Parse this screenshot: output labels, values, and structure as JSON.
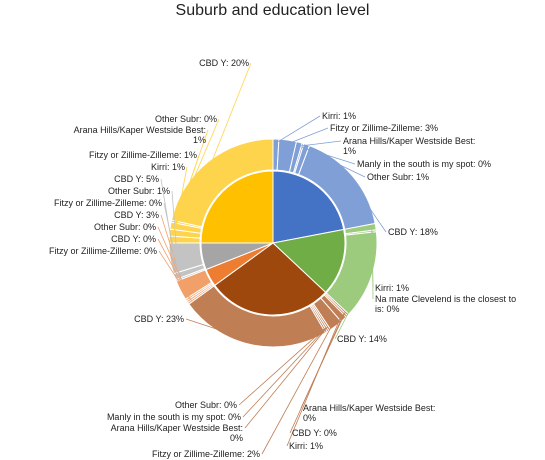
{
  "chart_data": {
    "type": "pie",
    "title": "Suburb and education level",
    "colors": {
      "inner": [
        "#4472C4",
        "#70AD47",
        "#9E480E",
        "#ED7D31",
        "#A5A5A5",
        "#FFC000"
      ],
      "outer": [
        "#7F9FD6",
        "#9CCB7D",
        "#C07E54",
        "#F1A06A",
        "#C3C3C3",
        "#FFD44D"
      ]
    },
    "inner": {
      "values": [
        22,
        15,
        28,
        4,
        6,
        25
      ]
    },
    "outer": [
      {
        "group": 0,
        "value": 1,
        "label": "Kirri: 1%"
      },
      {
        "group": 0,
        "value": 3,
        "label": "Fitzy or Zillime-Zilleme: 3%"
      },
      {
        "group": 0,
        "value": 1,
        "label": [
          "Arana Hills/Kaper Westside Best:",
          "1%"
        ]
      },
      {
        "group": 0,
        "value": 0.3,
        "label": "Manly in the south is my spot: 0%"
      },
      {
        "group": 0,
        "value": 1,
        "label": "Other Subr: 1%"
      },
      {
        "group": 0,
        "value": 18,
        "label": "CBD Y: 18%"
      },
      {
        "group": 1,
        "value": 1,
        "label": "Kirri: 1%"
      },
      {
        "group": 1,
        "value": 0.3,
        "label": [
          "Na mate Clevelend is the closest to",
          "is: 0%"
        ]
      },
      {
        "group": 1,
        "value": 14,
        "label": "CBD Y: 14%"
      },
      {
        "group": 2,
        "value": 0.3,
        "label": [
          "Arana Hills/Kaper Westside Best:",
          "0%"
        ]
      },
      {
        "group": 2,
        "value": 0.3,
        "label": "CBD Y: 0%"
      },
      {
        "group": 2,
        "value": 1,
        "label": "Kirri: 1%"
      },
      {
        "group": 2,
        "value": 2,
        "label": "Fitzy or Zillime-Zilleme: 2%"
      },
      {
        "group": 2,
        "value": 0.3,
        "label": [
          "Arana Hills/Kaper Westside Best:",
          "0%"
        ]
      },
      {
        "group": 2,
        "value": 0.3,
        "label": "Manly in the south is my spot: 0%"
      },
      {
        "group": 2,
        "value": 0.3,
        "label": "Other Subr: 0%"
      },
      {
        "group": 2,
        "value": 23,
        "label": "CBD Y: 23%"
      },
      {
        "group": 3,
        "value": 0.3,
        "label": "Fitzy or Zillime-Zilleme: 0%"
      },
      {
        "group": 3,
        "value": 0.3,
        "label": "CBD Y: 0%"
      },
      {
        "group": 3,
        "value": 0.3,
        "label": "Other Subr: 0%"
      },
      {
        "group": 3,
        "value": 3,
        "label": "CBD Y: 3%"
      },
      {
        "group": 4,
        "value": 0.3,
        "label": "Fitzy or Zillime-Zilleme: 0%"
      },
      {
        "group": 4,
        "value": 1,
        "label": "Other Subr: 1%"
      },
      {
        "group": 4,
        "value": 5,
        "label": "CBD Y: 5%"
      },
      {
        "group": 5,
        "value": 1,
        "label": "Kirri: 1%"
      },
      {
        "group": 5,
        "value": 1,
        "label": "Fitzy or Zillime-Zilleme: 1%"
      },
      {
        "group": 5,
        "value": 1,
        "label": [
          "Arana Hills/Kaper Westside Best:",
          "1%"
        ]
      },
      {
        "group": 5,
        "value": 0.3,
        "label": "Other Subr: 0%"
      },
      {
        "group": 5,
        "value": 20,
        "label": "CBD Y: 20%"
      }
    ]
  }
}
